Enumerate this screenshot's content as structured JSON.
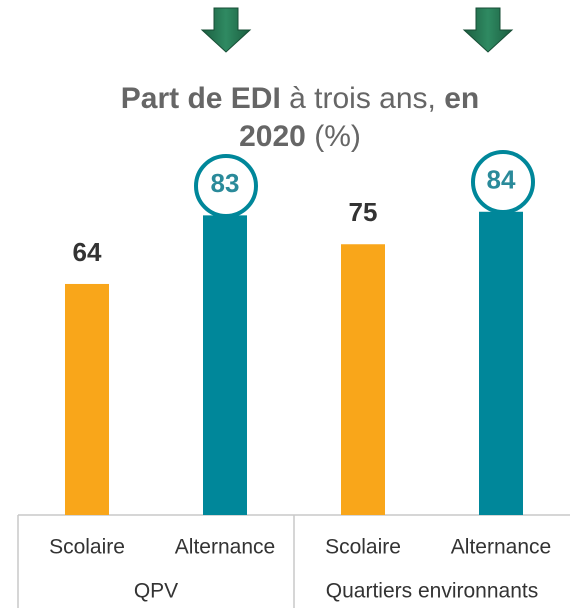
{
  "chart_data": {
    "type": "bar",
    "title_lines": [
      [
        {
          "text": "Part de EDI",
          "bold": true
        },
        {
          "text": " à trois ans, ",
          "bold": false
        },
        {
          "text": "en",
          "bold": true
        }
      ],
      [
        {
          "text": "2020",
          "bold": true
        },
        {
          "text": " (%)",
          "bold": false
        }
      ]
    ],
    "categories": [
      "Scolaire",
      "Alternance",
      "Scolaire",
      "Alternance"
    ],
    "groups": [
      {
        "name": "QPV",
        "size": 2
      },
      {
        "name": "Quartiers environnants",
        "size": 2
      }
    ],
    "values": [
      64,
      83,
      75,
      84
    ],
    "colors": [
      "#f9a61a",
      "#00879a",
      "#f9a61a",
      "#00879a"
    ],
    "label_colors": [
      "#333333",
      "#2a8a9a",
      "#333333",
      "#2a8a9a"
    ],
    "ylim": [
      0,
      100
    ]
  }
}
